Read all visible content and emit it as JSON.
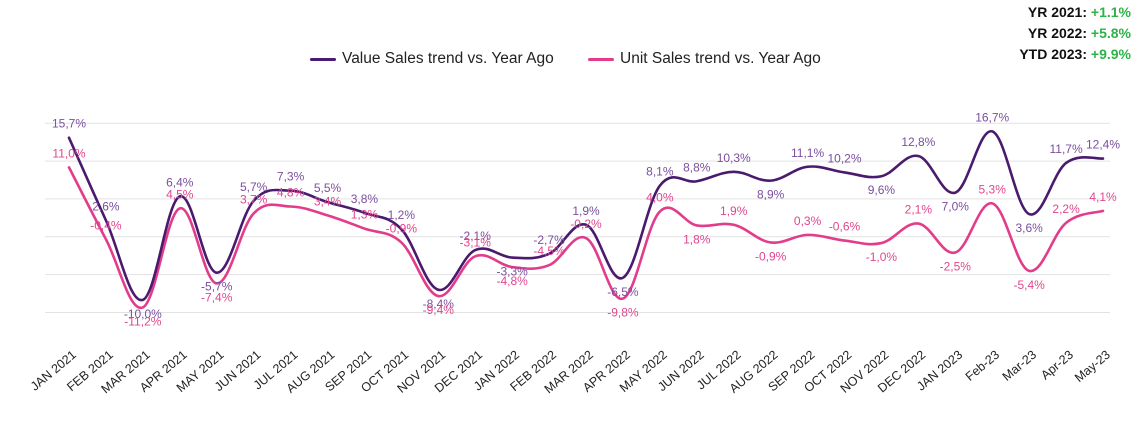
{
  "summary": [
    {
      "label": "YR 2021:",
      "value": "+1.1%"
    },
    {
      "label": "YR 2022:",
      "value": "+5.8%"
    },
    {
      "label": "YTD 2023:",
      "value": "+9.9%"
    }
  ],
  "colors": {
    "value_series": "#4a1a6e",
    "unit_series": "#e23c8a",
    "value_label": "#7b4f9e",
    "unit_label": "#e0468f",
    "summary_value": "#2db34a",
    "grid": "#e2e2e2"
  },
  "chart_data": {
    "type": "line",
    "title": "",
    "xlabel": "",
    "ylabel": "",
    "ylim": [
      -17,
      22
    ],
    "grid": true,
    "legend_position": "top-center",
    "categories": [
      "JAN 2021",
      "FEB 2021",
      "MAR 2021",
      "APR 2021",
      "MAY 2021",
      "JUN 2021",
      "JUL 2021",
      "AUG 2021",
      "SEP 2021",
      "OCT 2021",
      "NOV 2021",
      "DEC 2021",
      "JAN 2022",
      "FEB 2022",
      "MAR 2022",
      "APR 2022",
      "MAY 2022",
      "JUN 2022",
      "JUL 2022",
      "AUG 2022",
      "SEP 2022",
      "OCT 2022",
      "NOV 2022",
      "DEC 2022",
      "JAN 2023",
      "Feb-23",
      "Mar-23",
      "Apr-23",
      "May-23"
    ],
    "series": [
      {
        "name": "Value Sales trend vs. Year Ago",
        "values": [
          15.7,
          2.6,
          -10.0,
          6.4,
          -5.7,
          5.7,
          7.3,
          5.5,
          3.8,
          1.2,
          -8.4,
          -2.1,
          -3.3,
          -2.7,
          1.9,
          -6.5,
          8.1,
          8.8,
          10.3,
          8.9,
          11.1,
          10.2,
          9.6,
          12.8,
          7.0,
          16.7,
          3.6,
          11.7,
          12.4
        ],
        "labels": [
          "15,7%",
          "2,6%",
          "-10,0%",
          "6,4%",
          "-5,7%",
          "5,7%",
          "7,3%",
          "5,5%",
          "3,8%",
          "1,2%",
          "-8,4%",
          "-2,1%",
          "-3,3%",
          "-2,7%",
          "1,9%",
          "-6,5%",
          "8,1%",
          "8,8%",
          "10,3%",
          "8,9%",
          "11,1%",
          "10,2%",
          "9,6%",
          "12,8%",
          "7,0%",
          "16,7%",
          "3,6%",
          "11,7%",
          "12,4%"
        ]
      },
      {
        "name": "Unit Sales trend vs. Year Ago",
        "values": [
          11.0,
          -0.4,
          -11.2,
          4.5,
          -7.4,
          3.7,
          4.8,
          3.4,
          1.3,
          -0.9,
          -9.4,
          -3.1,
          -4.8,
          -4.5,
          -0.2,
          -9.8,
          4.0,
          1.8,
          1.9,
          -0.9,
          0.3,
          -0.6,
          -1.0,
          2.1,
          -2.5,
          5.3,
          -5.4,
          2.2,
          4.1
        ],
        "labels": [
          "11,0%",
          "-0,4%",
          "-11,2%",
          "4,5%",
          "-7,4%",
          "3,7%",
          "4,8%",
          "3,4%",
          "1,3%",
          "-0,9%",
          "-9,4%",
          "-3,1%",
          "-4,8%",
          "-4,5%",
          "-0,2%",
          "-9,8%",
          "4,0%",
          "1,8%",
          "1,9%",
          "-0,9%",
          "0,3%",
          "-0,6%",
          "-1,0%",
          "2,1%",
          "-2,5%",
          "5,3%",
          "-5,4%",
          "2,2%",
          "4,1%"
        ]
      }
    ]
  }
}
